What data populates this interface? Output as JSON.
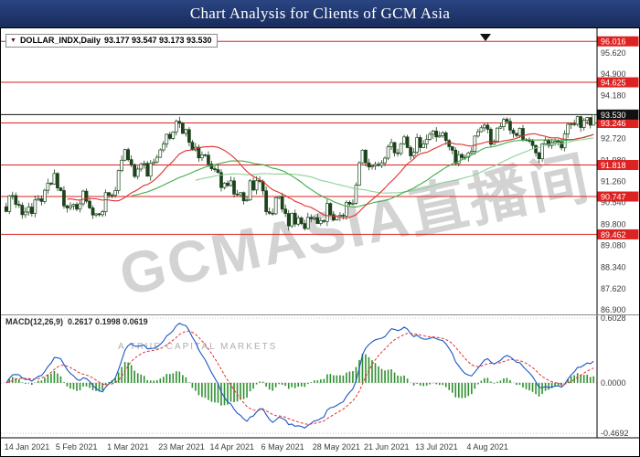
{
  "window": {
    "title": "Chart Analysis for Clients of GCM Asia"
  },
  "symbol_bar": {
    "symbol": "DOLLAR_INDX,Daily",
    "ohlc": "93.177 93.547 93.173 93.530"
  },
  "watermark": {
    "main": "GCMASIA直播间",
    "sub": "A TRUE CAPITAL MARKETS"
  },
  "price_axis": {
    "ticks": [
      95.62,
      94.9,
      94.18,
      93.46,
      92.72,
      91.98,
      91.26,
      90.54,
      89.8,
      89.08,
      88.34,
      87.62,
      86.9
    ],
    "range_top": 96.458,
    "range_bottom": 86.775
  },
  "hlines": {
    "red": [
      96.016,
      94.625,
      93.246,
      91.818,
      90.747,
      89.462
    ],
    "current": 93.53
  },
  "x_axis": {
    "labels": [
      {
        "text": "14 Jan 2021",
        "bar": 0
      },
      {
        "text": "5 Feb 2021",
        "bar": 16
      },
      {
        "text": "1 Mar 2021",
        "bar": 32
      },
      {
        "text": "23 Mar 2021",
        "bar": 48
      },
      {
        "text": "14 Apr 2021",
        "bar": 64
      },
      {
        "text": "6 May 2021",
        "bar": 80
      },
      {
        "text": "28 May 2021",
        "bar": 96
      },
      {
        "text": "21 Jun 2021",
        "bar": 112
      },
      {
        "text": "13 Jul 2021",
        "bar": 128
      },
      {
        "text": "4 Aug 2021",
        "bar": 144
      }
    ]
  },
  "macd_panel": {
    "label": "MACD(12,26,9)",
    "values": "0.2617 0.1998 0.0619",
    "levels": [
      0.6028,
      0.0,
      -0.4692
    ]
  },
  "chart_data": {
    "type": "candlestick",
    "symbol": "DOLLAR_INDX",
    "timeframe": "Daily",
    "first_open": 90.4,
    "last_ohlc": {
      "open": 93.177,
      "high": 93.547,
      "low": 93.173,
      "close": 93.53
    },
    "price_range": [
      86.775,
      96.458
    ],
    "closes": [
      90.24,
      90.77,
      90.78,
      90.48,
      90.45,
      90.13,
      90.22,
      90.39,
      90.17,
      90.63,
      90.67,
      90.58,
      90.96,
      91.2,
      91.17,
      91.53,
      91.04,
      90.95,
      90.43,
      90.36,
      90.43,
      90.48,
      90.32,
      90.5,
      90.93,
      90.59,
      90.36,
      90.12,
      90.16,
      90.13,
      90.23,
      90.88,
      90.79,
      90.79,
      90.95,
      91.63,
      91.98,
      92.34,
      92.0,
      91.83,
      91.43,
      91.68,
      91.84,
      91.87,
      91.44,
      91.87,
      91.92,
      92.08,
      92.33,
      92.53,
      92.86,
      92.72,
      92.94,
      93.3,
      93.23,
      92.89,
      93.02,
      92.59,
      92.33,
      92.42,
      92.06,
      92.16,
      92.15,
      91.85,
      91.69,
      91.66,
      91.56,
      91.05,
      91.2,
      91.12,
      91.28,
      90.83,
      90.81,
      90.88,
      90.6,
      90.63,
      91.28,
      90.97,
      91.29,
      91.26,
      90.94,
      90.23,
      90.18,
      90.16,
      90.71,
      90.75,
      90.32,
      90.17,
      89.75,
      90.18,
      89.81,
      90.02,
      89.83,
      89.66,
      90.04,
      89.99,
      90.03,
      89.83,
      89.93,
      89.9,
      90.51,
      90.13,
      89.95,
      90.07,
      90.11,
      90.08,
      90.55,
      90.49,
      90.52,
      91.13,
      91.89,
      92.32,
      91.89,
      91.75,
      91.79,
      91.84,
      91.8,
      91.89,
      92.05,
      92.44,
      92.58,
      92.23,
      92.21,
      92.54,
      92.77,
      92.41,
      92.13,
      92.25,
      92.75,
      92.41,
      92.53,
      92.69,
      92.86,
      92.97,
      92.77,
      92.81,
      92.91,
      92.65,
      92.44,
      92.32,
      91.87,
      92.17,
      92.07,
      92.08,
      92.23,
      92.28,
      92.8,
      92.95,
      93.08,
      93.17,
      93.03,
      92.52,
      92.62,
      93.07,
      93.12,
      93.37,
      93.3,
      93.0,
      92.89,
      92.82,
      93.06,
      92.68,
      92.65,
      92.63,
      92.48,
      92.23,
      92.03,
      92.53,
      92.65,
      92.48,
      92.58,
      92.63,
      92.6,
      92.4,
      92.87,
      93.2,
      93.21,
      93.2,
      93.46,
      93.09,
      93.33,
      93.43,
      93.17,
      93.53
    ],
    "overlays": [
      {
        "name": "SMA-20",
        "color": "#e03030"
      },
      {
        "name": "SMA-40",
        "color": "#3fae49"
      },
      {
        "name": "SMA-60",
        "color": "#90d09a"
      }
    ],
    "indicator": {
      "name": "MACD",
      "params": [
        12,
        26,
        9
      ],
      "last_values": [
        0.2617,
        0.1998,
        0.0619
      ],
      "range": [
        -0.4692,
        0.6028
      ]
    }
  },
  "colors": {
    "titlebar_bg": "#1d3264",
    "line_red": "#dd2222",
    "current_price": "#111111",
    "candle": "#1c431c",
    "ma_fast": "#e03030",
    "ma_mid": "#3fae49",
    "ma_slow": "#90d09a",
    "macd_line": "#1a56c4",
    "signal_line": "#e03030",
    "histogram": "#2f8f2f",
    "watermark": "#a8a8a8",
    "axis_text": "#3a3a3a"
  }
}
